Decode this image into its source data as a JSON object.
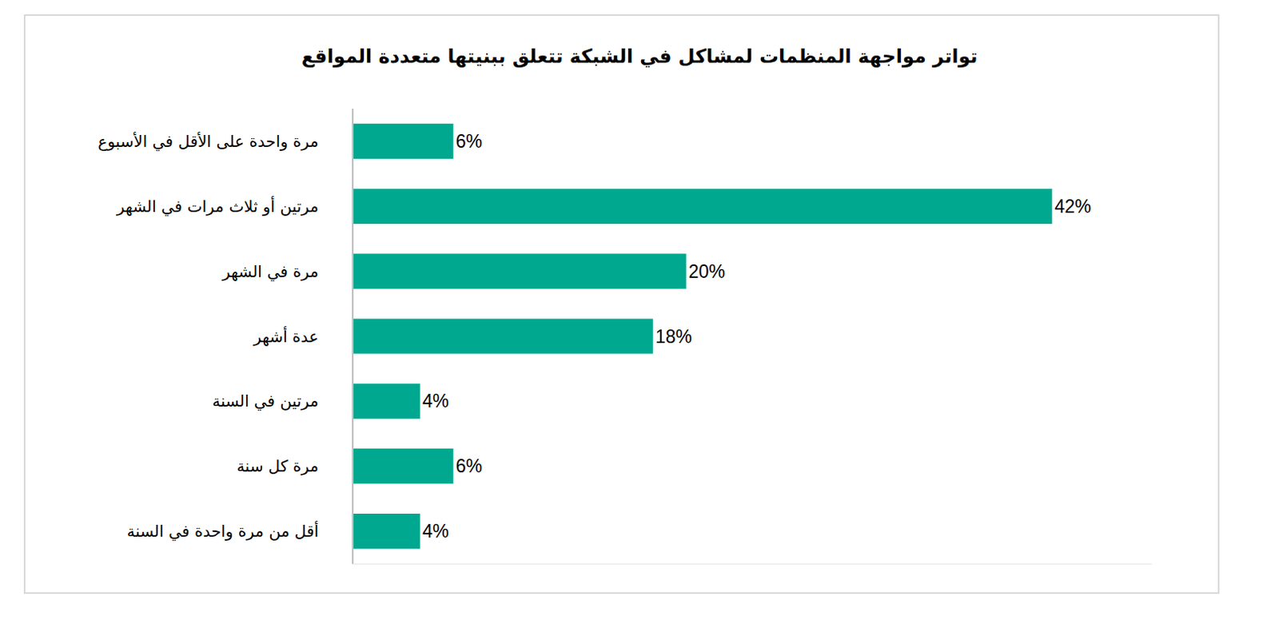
{
  "chart_data": {
    "type": "bar",
    "orientation": "horizontal",
    "title": "تواتر مواجهة المنظمات لمشاكل في الشبكة تتعلق ببنيتها متعددة المواقع",
    "categories": [
      "مرة واحدة على الأقل في الأسبوع",
      "مرتين أو ثلاث مرات في الشهر",
      "مرة في الشهر",
      "عدة أشهر",
      "مرتين في السنة",
      "مرة كل سنة",
      "أقل من مرة واحدة في السنة"
    ],
    "values": [
      6,
      42,
      20,
      18,
      4,
      6,
      4
    ],
    "value_labels": [
      "6%",
      "42%",
      "20%",
      "18%",
      "4%",
      "6%",
      "4%"
    ],
    "color": "#00a88f",
    "xlim": [
      0,
      48
    ],
    "grid": false,
    "data_labels": true,
    "tick_labels": "y"
  }
}
